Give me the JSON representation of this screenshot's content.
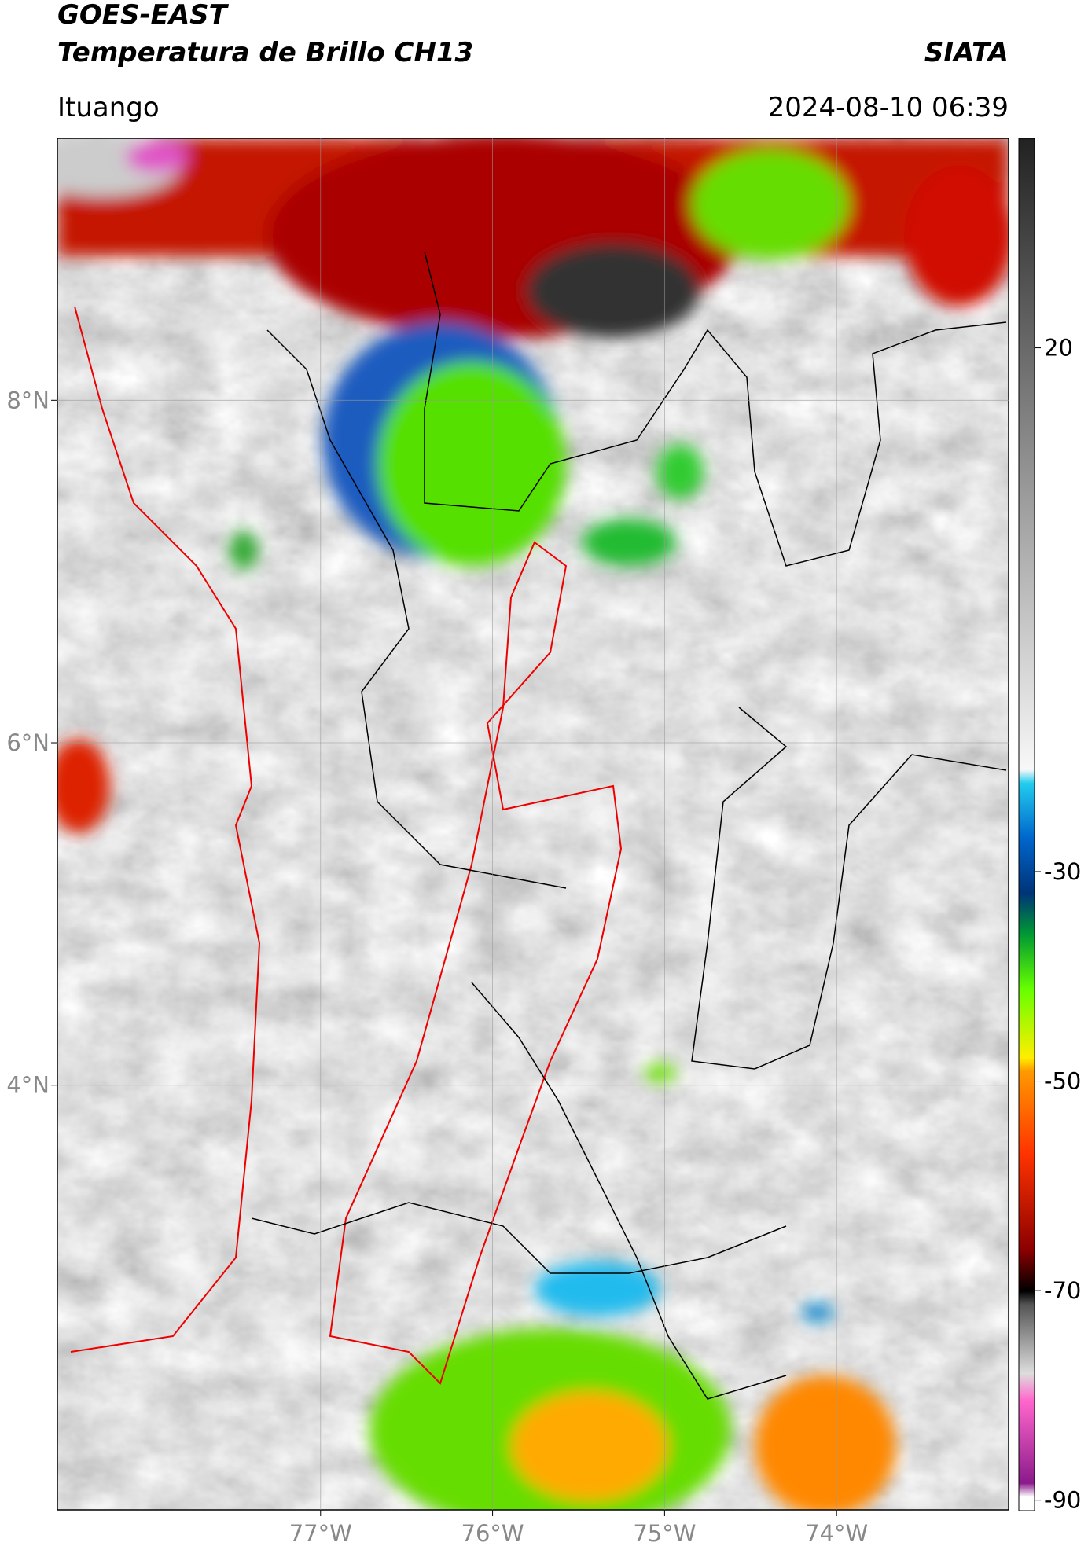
{
  "header": {
    "title": "GOES-EAST",
    "subtitle": "Temperatura de Brillo CH13",
    "agency": "SIATA",
    "location": "Ituango",
    "datetime": "2024-08-10 06:39"
  },
  "map": {
    "xlim": [
      -78.53,
      -73.0
    ],
    "ylim": [
      1.52,
      9.53
    ],
    "xticks": [
      {
        "value": -77,
        "label": "77°W"
      },
      {
        "value": -76,
        "label": "76°W"
      },
      {
        "value": -75,
        "label": "75°W"
      },
      {
        "value": -74,
        "label": "74°W"
      }
    ],
    "yticks": [
      {
        "value": 8,
        "label": "8°N"
      },
      {
        "value": 6,
        "label": "6°N"
      },
      {
        "value": 4,
        "label": "4°N"
      }
    ],
    "grid": true
  },
  "colorbar": {
    "lim": [
      -91,
      40
    ],
    "ticks": [
      20,
      -30,
      -50,
      -70,
      -90
    ]
  }
}
